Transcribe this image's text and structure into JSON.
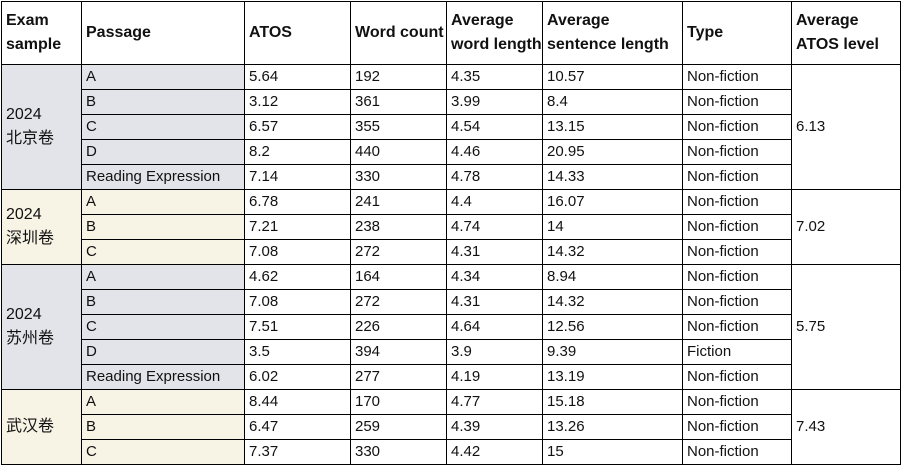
{
  "headers": {
    "exam_sample": "Exam sample",
    "passage": "Passage",
    "atos": "ATOS",
    "word_count": "Word count",
    "avg_word_length": "Average word length",
    "avg_sentence_length": "Average sentence length",
    "type": "Type",
    "avg_atos_level": "Average ATOS level"
  },
  "groups": [
    {
      "year": "2024",
      "name": "北京卷",
      "average_atos": "6.13",
      "rows": [
        {
          "passage": "A",
          "atos": "5.64",
          "word_count": "192",
          "avg_word_length": "4.35",
          "avg_sentence_length": "10.57",
          "type": "Non-fiction"
        },
        {
          "passage": "B",
          "atos": "3.12",
          "word_count": "361",
          "avg_word_length": "3.99",
          "avg_sentence_length": "8.4",
          "type": "Non-fiction"
        },
        {
          "passage": "C",
          "atos": "6.57",
          "word_count": "355",
          "avg_word_length": "4.54",
          "avg_sentence_length": "13.15",
          "type": "Non-fiction"
        },
        {
          "passage": "D",
          "atos": "8.2",
          "word_count": "440",
          "avg_word_length": "4.46",
          "avg_sentence_length": "20.95",
          "type": "Non-fiction"
        },
        {
          "passage": "Reading Expression",
          "atos": "7.14",
          "word_count": "330",
          "avg_word_length": "4.78",
          "avg_sentence_length": "14.33",
          "type": "Non-fiction"
        }
      ]
    },
    {
      "year": "2024",
      "name": "深圳卷",
      "average_atos": "7.02",
      "rows": [
        {
          "passage": "A",
          "atos": "6.78",
          "word_count": "241",
          "avg_word_length": "4.4",
          "avg_sentence_length": "16.07",
          "type": "Non-fiction"
        },
        {
          "passage": "B",
          "atos": "7.21",
          "word_count": "238",
          "avg_word_length": "4.74",
          "avg_sentence_length": "14",
          "type": "Non-fiction"
        },
        {
          "passage": "C",
          "atos": "7.08",
          "word_count": "272",
          "avg_word_length": "4.31",
          "avg_sentence_length": "14.32",
          "type": "Non-fiction"
        }
      ]
    },
    {
      "year": "2024",
      "name": "苏州卷",
      "average_atos": "5.75",
      "rows": [
        {
          "passage": "A",
          "atos": "4.62",
          "word_count": "164",
          "avg_word_length": "4.34",
          "avg_sentence_length": "8.94",
          "type": "Non-fiction"
        },
        {
          "passage": "B",
          "atos": "7.08",
          "word_count": "272",
          "avg_word_length": "4.31",
          "avg_sentence_length": "14.32",
          "type": "Non-fiction"
        },
        {
          "passage": "C",
          "atos": "7.51",
          "word_count": "226",
          "avg_word_length": "4.64",
          "avg_sentence_length": "12.56",
          "type": "Non-fiction"
        },
        {
          "passage": "D",
          "atos": "3.5",
          "word_count": "394",
          "avg_word_length": "3.9",
          "avg_sentence_length": "9.39",
          "type": "Fiction"
        },
        {
          "passage": "Reading Expression",
          "atos": "6.02",
          "word_count": "277",
          "avg_word_length": "4.19",
          "avg_sentence_length": "13.19",
          "type": "Non-fiction"
        }
      ]
    },
    {
      "year": "",
      "name": "武汉卷",
      "average_atos": "7.43",
      "rows": [
        {
          "passage": "A",
          "atos": "8.44",
          "word_count": "170",
          "avg_word_length": "4.77",
          "avg_sentence_length": "15.18",
          "type": "Non-fiction"
        },
        {
          "passage": "B",
          "atos": "6.47",
          "word_count": "259",
          "avg_word_length": "4.39",
          "avg_sentence_length": "13.26",
          "type": "Non-fiction"
        },
        {
          "passage": "C",
          "atos": "7.37",
          "word_count": "330",
          "avg_word_length": "4.42",
          "avg_sentence_length": "15",
          "type": "Non-fiction"
        }
      ]
    }
  ],
  "colors": {
    "group_gray": "#e2e4e9",
    "group_cream": "#f7f4e5",
    "border": "#000000",
    "header_bg": "#ffffff"
  }
}
